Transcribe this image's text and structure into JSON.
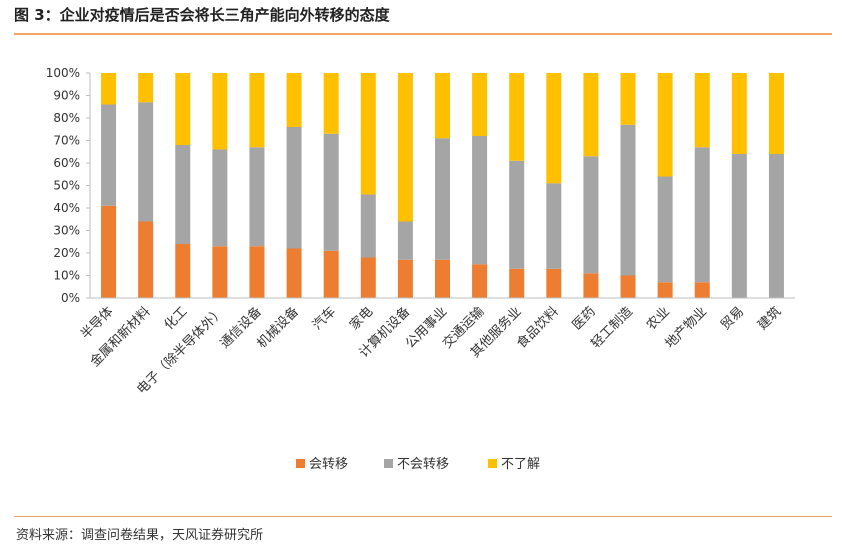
{
  "figure_title": "图 3：企业对疫情后是否会将长三角产能向外转移的态度",
  "source_note": "资料来源：调查问卷结果，天风证券研究所",
  "colors": {
    "accent_rule": "#f2a460",
    "series": [
      "#ed7d31",
      "#a5a5a5",
      "#ffc000"
    ]
  },
  "chart_data": {
    "type": "bar",
    "stacked": true,
    "percent": true,
    "categories": [
      "半导体",
      "金属和新材料",
      "化工",
      "电子（除半导体外）",
      "通信设备",
      "机械设备",
      "汽车",
      "家电",
      "计算机设备",
      "公用事业",
      "交通运输",
      "其他服务业",
      "食品饮料",
      "医药",
      "轻工制造",
      "农业",
      "地产物业",
      "贸易",
      "建筑"
    ],
    "series": [
      {
        "name": "会转移",
        "values": [
          41,
          34,
          24,
          23,
          23,
          22,
          21,
          18,
          17,
          17,
          15,
          13,
          13,
          11,
          10,
          7,
          7,
          0,
          0
        ]
      },
      {
        "name": "不会转移",
        "values": [
          45,
          53,
          44,
          43,
          44,
          54,
          52,
          28,
          17,
          54,
          57,
          48,
          38,
          52,
          67,
          47,
          60,
          64,
          64
        ]
      },
      {
        "name": "不了解",
        "values": [
          14,
          13,
          32,
          34,
          33,
          24,
          27,
          54,
          66,
          29,
          28,
          39,
          49,
          37,
          23,
          46,
          33,
          36,
          36
        ]
      }
    ],
    "yticks": [
      "0%",
      "10%",
      "20%",
      "30%",
      "40%",
      "50%",
      "60%",
      "70%",
      "80%",
      "90%",
      "100%"
    ],
    "ylim": [
      0,
      100
    ],
    "title": "",
    "xlabel": "",
    "ylabel": "",
    "grid": false,
    "legend_position": "bottom"
  }
}
